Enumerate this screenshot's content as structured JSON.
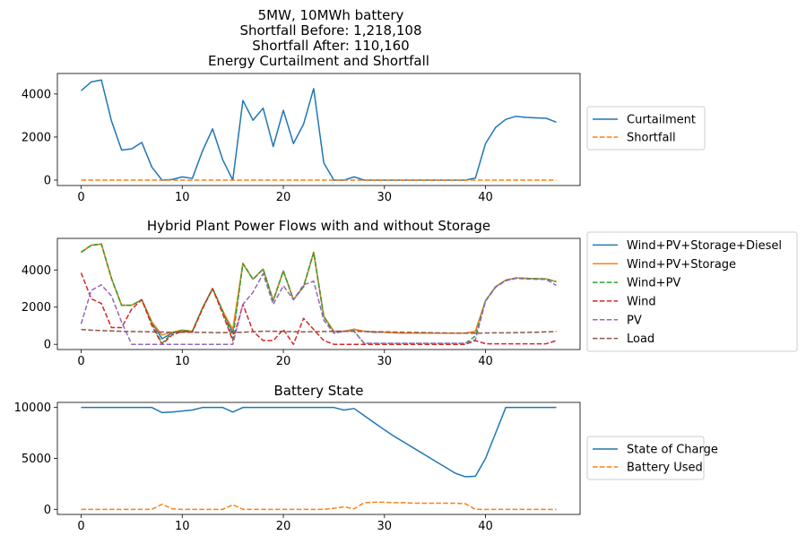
{
  "colors": {
    "blue": "#1f77b4",
    "orange": "#ff7f0e",
    "green": "#2ca02c",
    "red": "#d62728",
    "purple": "#9467bd",
    "brown": "#8c564b"
  },
  "figure_title_lines": [
    "5MW, 10MWh battery",
    "Shortfall Before: 1,218,108",
    "Shortfall After: 110,160"
  ],
  "chart_data": [
    {
      "type": "line",
      "title": "Energy Curtailment and Shortfall",
      "xlim": [
        -2.35,
        49.35
      ],
      "ylim": [
        -250,
        4950
      ],
      "xticks": [
        0,
        10,
        20,
        30,
        40
      ],
      "yticks": [
        0,
        2000,
        4000
      ],
      "legend_position": "right",
      "series": [
        {
          "name": "Curtailment",
          "color": "#1f77b4",
          "dashed": false,
          "values": [
            4150,
            4560,
            4650,
            2750,
            1400,
            1450,
            1750,
            600,
            0,
            30,
            150,
            80,
            1350,
            2380,
            950,
            0,
            3700,
            2780,
            3340,
            1560,
            3240,
            1700,
            2600,
            4250,
            800,
            0,
            0,
            150,
            0,
            0,
            0,
            0,
            0,
            0,
            0,
            0,
            0,
            0,
            0,
            100,
            1700,
            2450,
            2820,
            2960,
            2910,
            2890,
            2870,
            2690
          ]
        },
        {
          "name": "Shortfall",
          "color": "#ff7f0e",
          "dashed": true,
          "values": [
            0,
            0,
            0,
            0,
            0,
            0,
            0,
            0,
            0,
            0,
            0,
            0,
            0,
            0,
            0,
            0,
            0,
            0,
            0,
            0,
            0,
            0,
            0,
            0,
            0,
            0,
            0,
            0,
            0,
            0,
            0,
            0,
            0,
            0,
            0,
            0,
            0,
            0,
            0,
            0,
            0,
            0,
            0,
            0,
            0,
            0,
            0,
            0
          ]
        }
      ]
    },
    {
      "type": "line",
      "title": "Hybrid Plant Power Flows with and without Storage",
      "xlim": [
        -2.35,
        49.35
      ],
      "ylim": [
        -280,
        5700
      ],
      "xticks": [
        0,
        10,
        20,
        30,
        40
      ],
      "yticks": [
        0,
        2000,
        4000
      ],
      "legend_position": "right",
      "series": [
        {
          "name": "Wind+PV+Storage+Diesel",
          "color": "#1f77b4",
          "dashed": false,
          "values": [
            4950,
            5330,
            5400,
            3550,
            2100,
            2100,
            2400,
            1200,
            300,
            600,
            750,
            700,
            1950,
            3000,
            1800,
            600,
            4350,
            3500,
            4050,
            2350,
            3950,
            2400,
            3100,
            4950,
            1500,
            700,
            700,
            800,
            700,
            650,
            650,
            620,
            600,
            600,
            600,
            600,
            600,
            600,
            600,
            700,
            2350,
            3100,
            3450,
            3570,
            3550,
            3530,
            3520,
            3370
          ]
        },
        {
          "name": "Wind+PV+Storage",
          "color": "#ff7f0e",
          "dashed": false,
          "values": [
            4950,
            5330,
            5400,
            3550,
            2100,
            2100,
            2400,
            1200,
            500,
            650,
            770,
            700,
            1950,
            3000,
            1800,
            800,
            4350,
            3500,
            4050,
            2350,
            3950,
            2400,
            3100,
            4950,
            1500,
            700,
            700,
            820,
            700,
            670,
            650,
            620,
            600,
            600,
            600,
            600,
            600,
            600,
            600,
            700,
            2350,
            3100,
            3450,
            3570,
            3550,
            3530,
            3520,
            3370
          ]
        },
        {
          "name": "Wind+PV",
          "color": "#2ca02c",
          "dashed": true,
          "values": [
            4950,
            5330,
            5400,
            3550,
            2100,
            2100,
            2400,
            1100,
            50,
            600,
            750,
            700,
            1950,
            3000,
            1800,
            300,
            4350,
            3500,
            4050,
            2350,
            3950,
            2400,
            3100,
            4950,
            1500,
            600,
            700,
            700,
            50,
            50,
            50,
            50,
            50,
            50,
            50,
            50,
            50,
            50,
            50,
            450,
            2350,
            3100,
            3450,
            3570,
            3550,
            3530,
            3520,
            3370
          ]
        },
        {
          "name": "Wind",
          "color": "#d62728",
          "dashed": true,
          "values": [
            3850,
            2450,
            2200,
            900,
            900,
            1900,
            2400,
            1000,
            0,
            500,
            700,
            650,
            1900,
            3000,
            1650,
            200,
            2150,
            700,
            200,
            200,
            800,
            0,
            1400,
            800,
            200,
            0,
            0,
            0,
            0,
            0,
            0,
            0,
            0,
            0,
            0,
            0,
            0,
            0,
            0,
            200,
            30,
            30,
            30,
            30,
            30,
            30,
            30,
            200
          ]
        },
        {
          "name": "PV",
          "color": "#9467bd",
          "dashed": true,
          "values": [
            1100,
            2900,
            3200,
            2600,
            1200,
            0,
            0,
            0,
            0,
            0,
            0,
            0,
            0,
            0,
            0,
            0,
            2150,
            2800,
            3800,
            2150,
            3150,
            2400,
            3200,
            3400,
            1300,
            600,
            700,
            700,
            50,
            50,
            50,
            50,
            50,
            50,
            50,
            50,
            50,
            50,
            50,
            250,
            2320,
            3070,
            3420,
            3540,
            3520,
            3500,
            3490,
            3170
          ]
        },
        {
          "name": "Load",
          "color": "#8c564b",
          "dashed": true,
          "values": [
            800,
            760,
            740,
            720,
            700,
            690,
            680,
            670,
            660,
            650,
            650,
            650,
            640,
            630,
            630,
            640,
            650,
            680,
            700,
            700,
            690,
            680,
            670,
            680,
            690,
            700,
            700,
            700,
            690,
            680,
            670,
            660,
            650,
            640,
            630,
            620,
            610,
            600,
            600,
            600,
            610,
            620,
            620,
            630,
            640,
            650,
            670,
            690
          ]
        }
      ]
    },
    {
      "type": "line",
      "title": "Battery State",
      "xlim": [
        -2.35,
        49.35
      ],
      "ylim": [
        -500,
        10500
      ],
      "xticks": [
        0,
        10,
        20,
        30,
        40
      ],
      "yticks": [
        0,
        5000,
        10000
      ],
      "legend_position": "right",
      "series": [
        {
          "name": "State of Charge",
          "color": "#1f77b4",
          "dashed": false,
          "values": [
            10000,
            10000,
            10000,
            10000,
            10000,
            10000,
            10000,
            10000,
            9500,
            9550,
            9650,
            9750,
            10000,
            10000,
            10000,
            9550,
            10000,
            10000,
            10000,
            10000,
            10000,
            10000,
            10000,
            10000,
            10000,
            10000,
            9750,
            9900,
            9200,
            8500,
            7800,
            7150,
            6550,
            5950,
            5350,
            4750,
            4150,
            3550,
            3200,
            3250,
            5000,
            7500,
            10000,
            10000,
            10000,
            10000,
            10000,
            10000
          ]
        },
        {
          "name": "Battery Used",
          "color": "#ff7f0e",
          "dashed": true,
          "values": [
            0,
            0,
            0,
            0,
            0,
            0,
            0,
            0,
            500,
            50,
            0,
            0,
            0,
            0,
            0,
            450,
            0,
            0,
            0,
            0,
            0,
            0,
            0,
            0,
            0,
            100,
            250,
            50,
            650,
            700,
            700,
            650,
            650,
            600,
            600,
            600,
            600,
            600,
            550,
            0,
            0,
            0,
            0,
            0,
            0,
            0,
            0,
            0
          ]
        }
      ]
    }
  ]
}
